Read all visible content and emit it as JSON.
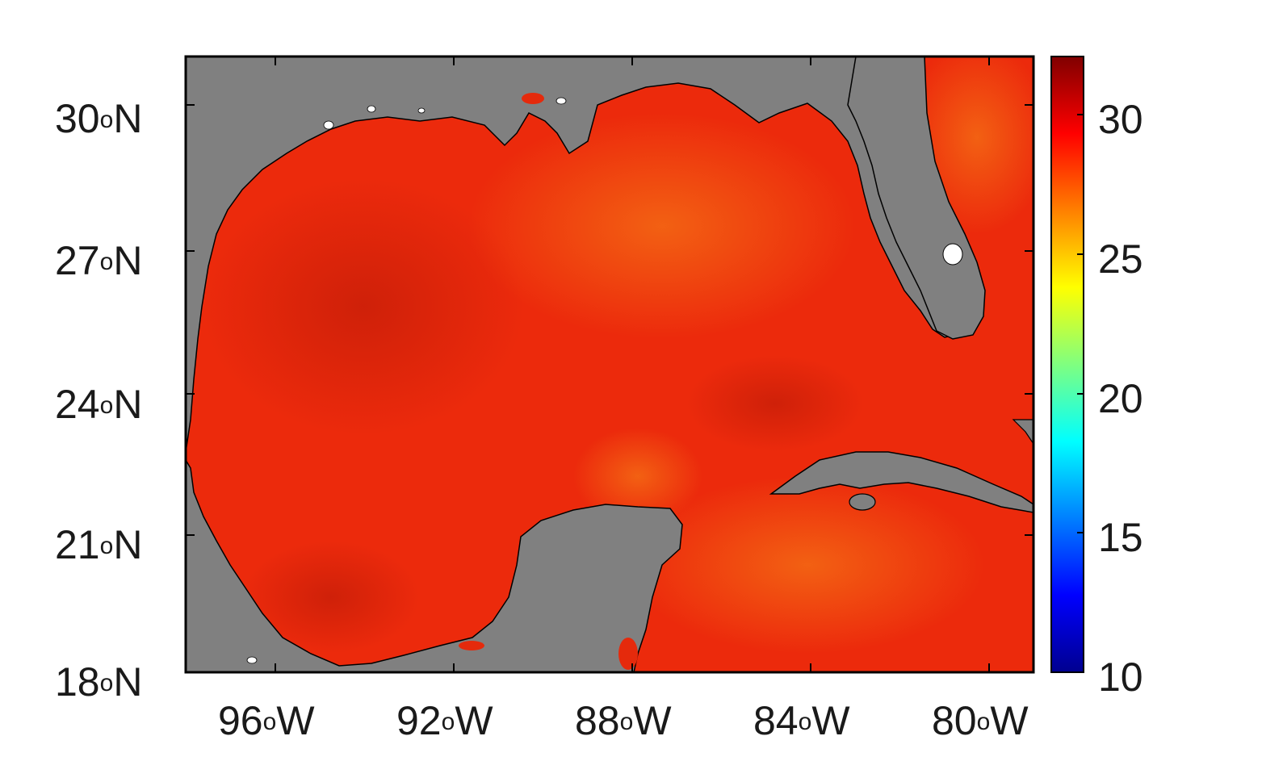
{
  "map": {
    "lat_ticks": [
      {
        "value": "30",
        "unit": "o",
        "hemi": "N"
      },
      {
        "value": "27",
        "unit": "o",
        "hemi": "N"
      },
      {
        "value": "24",
        "unit": "o",
        "hemi": "N"
      },
      {
        "value": "21",
        "unit": "o",
        "hemi": "N"
      },
      {
        "value": "18",
        "unit": "o",
        "hemi": "N"
      }
    ],
    "lon_ticks": [
      {
        "value": "96",
        "unit": "o",
        "hemi": "W"
      },
      {
        "value": "92",
        "unit": "o",
        "hemi": "W"
      },
      {
        "value": "88",
        "unit": "o",
        "hemi": "W"
      },
      {
        "value": "84",
        "unit": "o",
        "hemi": "W"
      },
      {
        "value": "80",
        "unit": "o",
        "hemi": "W"
      }
    ],
    "colorbar_ticks": [
      "30",
      "25",
      "20",
      "15",
      "10"
    ],
    "colorbar_range": [
      10,
      32
    ],
    "colors": {
      "land": "#808080",
      "ocean": "#ec2a0c",
      "ocean_warm": "#f45a10",
      "ocean_dark": "#cf1f08",
      "coastline": "#000000",
      "lakes": "#ffffff",
      "frame": "#000000"
    },
    "colormap": "jet"
  }
}
